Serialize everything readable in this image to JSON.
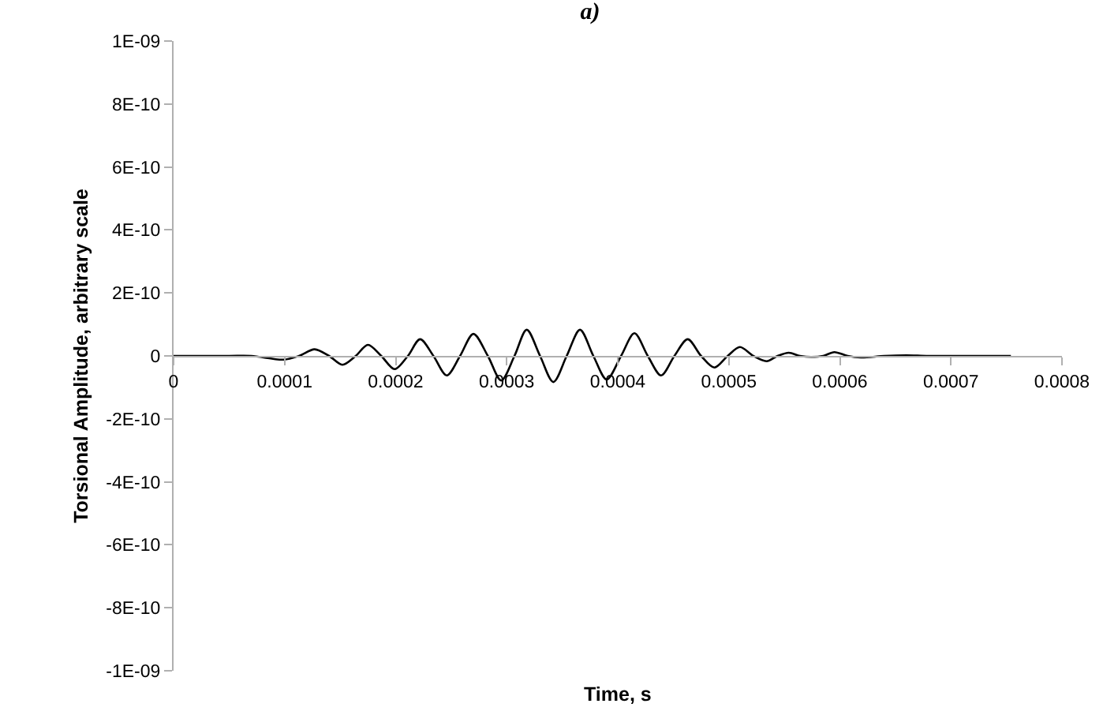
{
  "chart_data": {
    "type": "line",
    "title": "a)",
    "xlabel": "Time, s",
    "ylabel": "Torsional Amplitude, arbitrary scale",
    "x": [
      0,
      5e-05,
      7e-05,
      9.9e-05,
      0.000113,
      0.000127,
      0.00014,
      0.000152,
      0.000164,
      0.000175,
      0.000187,
      0.000199,
      0.000211,
      0.000222,
      0.000234,
      0.000246,
      0.000258,
      0.00027,
      0.000283,
      0.000295,
      0.000307,
      0.000318,
      0.00033,
      0.000342,
      0.000354,
      0.000366,
      0.000378,
      0.00039,
      0.000403,
      0.000415,
      0.000427,
      0.000439,
      0.000451,
      0.000463,
      0.000475,
      0.000487,
      0.000499,
      0.00051,
      0.000522,
      0.000534,
      0.000544,
      0.000554,
      0.000564,
      0.000574,
      0.000585,
      0.000595,
      0.000607,
      0.000619,
      0.00064,
      0.00066,
      0.00068,
      0.000754
    ],
    "series": [
      {
        "color": "#000000",
        "values": [
          0,
          0,
          0,
          -1.2e-11,
          0,
          2.1e-11,
          0,
          -2.8e-11,
          0,
          3.5e-11,
          0,
          -4.2e-11,
          0,
          5.3e-11,
          0,
          -6.2e-11,
          0,
          7e-11,
          0,
          -7.8e-11,
          0,
          8.3e-11,
          0,
          -8.3e-11,
          0,
          8.3e-11,
          0,
          -7.5e-11,
          0,
          7.2e-11,
          0,
          -6.2e-11,
          0,
          5.3e-11,
          0,
          -3.7e-11,
          0,
          2.8e-11,
          0,
          -1.7e-11,
          0,
          1e-11,
          0,
          -3e-12,
          0,
          1.2e-11,
          0,
          -5e-12,
          0,
          2e-12,
          0,
          0
        ]
      }
    ],
    "xlim": [
      0,
      0.0008
    ],
    "xticks": [
      0,
      0.0001,
      0.0002,
      0.0003,
      0.0004,
      0.0005,
      0.0006,
      0.0007,
      0.0008
    ],
    "ylim": [
      -1e-09,
      1e-09
    ],
    "yticks": [
      {
        "value": -1e-09,
        "label": "-1E-09"
      },
      {
        "value": -8e-10,
        "label": "-8E-10"
      },
      {
        "value": -6e-10,
        "label": "-6E-10"
      },
      {
        "value": -4e-10,
        "label": "-4E-10"
      },
      {
        "value": -2e-10,
        "label": "-2E-10"
      },
      0,
      {
        "value": 2e-10,
        "label": "2E-10"
      },
      {
        "value": 4e-10,
        "label": "4E-10"
      },
      {
        "value": 6e-10,
        "label": "6E-10"
      },
      {
        "value": 8e-10,
        "label": "8E-10"
      },
      {
        "value": 1e-09,
        "label": "1E-09"
      }
    ]
  }
}
